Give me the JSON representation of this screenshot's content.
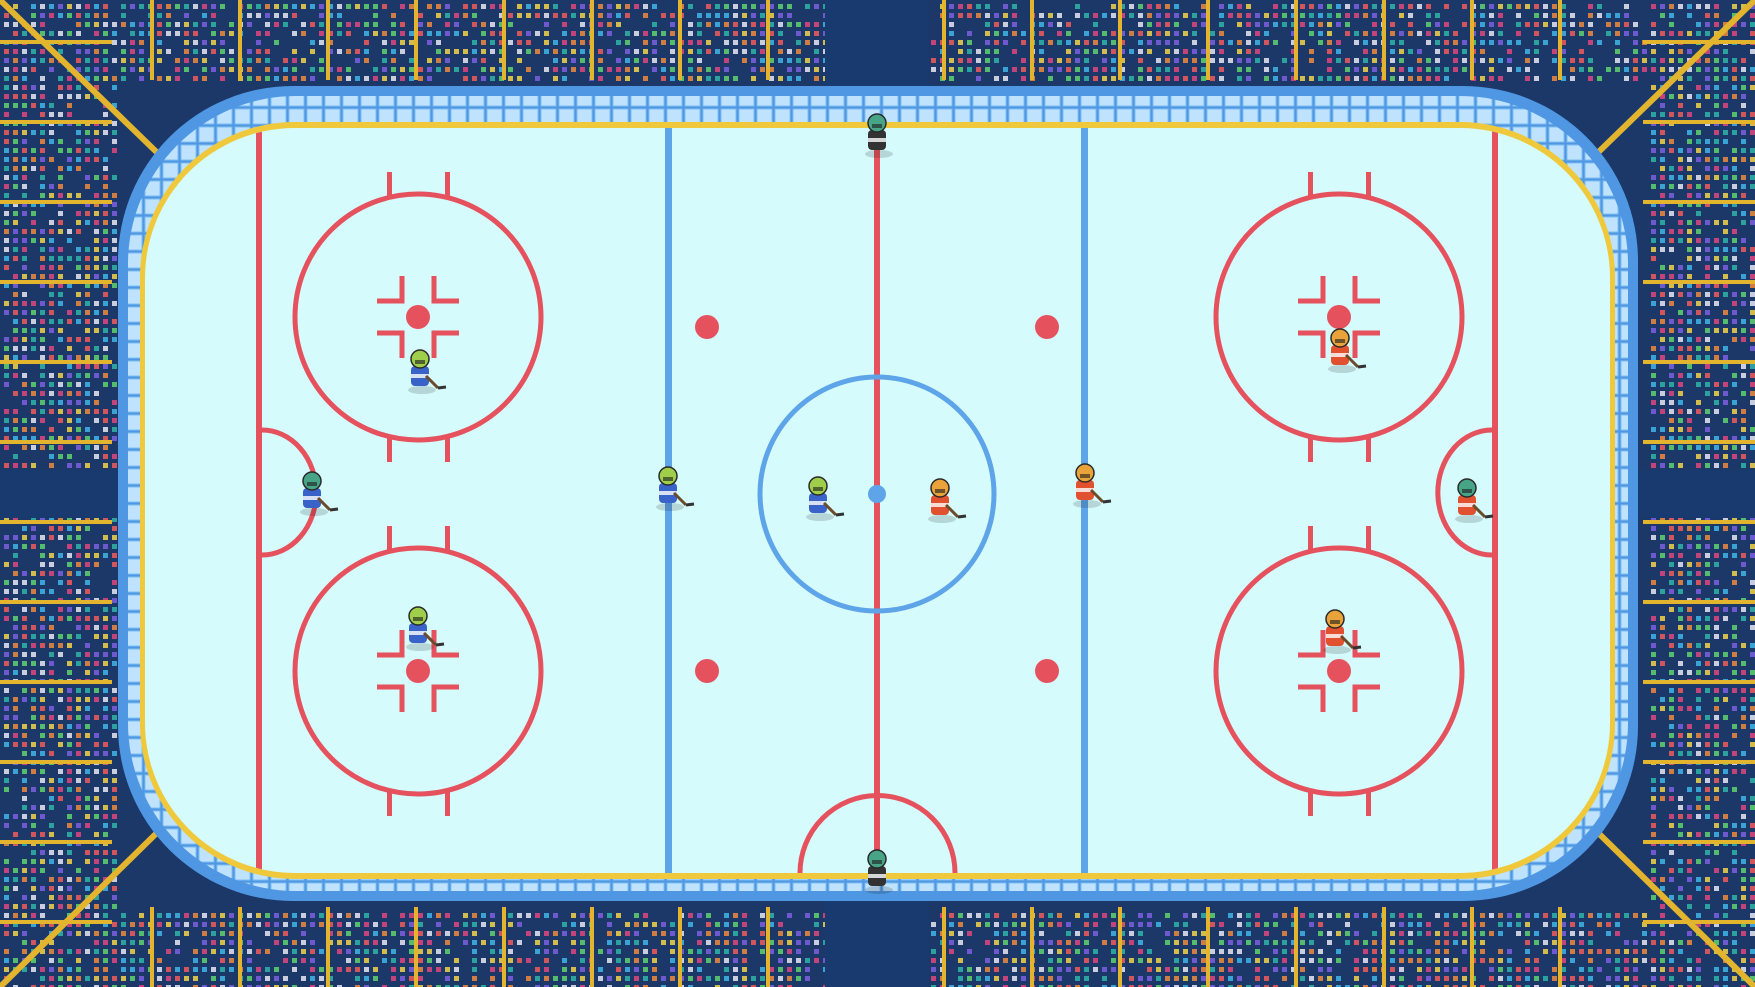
{
  "colors": {
    "stands_bg": "#1b3868",
    "aisle": "#183a6e",
    "aisle_line": "#e3b52f",
    "crowd": [
      "#e0457f",
      "#f08a3e",
      "#f2d44a",
      "#5fd36e",
      "#3fb6e8",
      "#7c5fe0",
      "#e8e8f2",
      "#f05a5a",
      "#2fb5a8"
    ],
    "boards_outer": "#4f97e3",
    "boards_inner": "#9ed3ff",
    "glass_pattern": "#bfe3ff",
    "boards_trim": "#efc93b",
    "ice": "#d5fbfd",
    "red_line": "#e5525d",
    "blue_line": "#5ea4e8",
    "team_home": "#3a63c9",
    "team_home_helmet": "#9fce4a",
    "team_away": "#e1502f",
    "team_away_helmet": "#e9a33a",
    "goalie_helmet": "#47a487",
    "referee": "#333333"
  },
  "players": [
    {
      "name": "home-goalie",
      "team": "home",
      "role": "goalie"
    },
    {
      "name": "home-defender-top",
      "team": "home",
      "role": "skater"
    },
    {
      "name": "home-defender-bottom",
      "team": "home",
      "role": "skater"
    },
    {
      "name": "home-winger",
      "team": "home",
      "role": "skater"
    },
    {
      "name": "home-center",
      "team": "home",
      "role": "skater"
    },
    {
      "name": "away-center",
      "team": "away",
      "role": "skater"
    },
    {
      "name": "away-winger",
      "team": "away",
      "role": "skater"
    },
    {
      "name": "away-forward-top",
      "team": "away",
      "role": "skater"
    },
    {
      "name": "away-forward-bottom",
      "team": "away",
      "role": "skater"
    },
    {
      "name": "away-goalie",
      "team": "away",
      "role": "goalie"
    },
    {
      "name": "referee-top",
      "team": "official",
      "role": "referee"
    },
    {
      "name": "referee-bottom",
      "team": "official",
      "role": "referee"
    }
  ]
}
